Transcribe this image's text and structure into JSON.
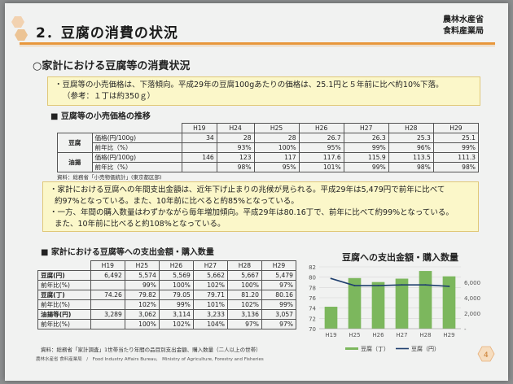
{
  "header": {
    "title": "2．豆腐の消費の状況",
    "ministry_line1": "農林水産省",
    "ministry_line2": "食料産業局"
  },
  "subtitle": "○家計における豆腐等の消費状況",
  "box1": {
    "line1": "・豆腐等の小売価格は、下落傾向。平成29年の豆腐100gあたりの価格は、25.1円と５年前に比べ約10%下落。",
    "line2": "（参考：１丁は約350ｇ）"
  },
  "section1_title": "■ 豆腐等の小売価格の推移",
  "price_table": {
    "years": [
      "H19",
      "H24",
      "H25",
      "H26",
      "H27",
      "H28",
      "H29"
    ],
    "rows": [
      {
        "group": "豆腐",
        "label": "価格(円/100g)",
        "values": [
          "34",
          "28",
          "28",
          "26.7",
          "26.3",
          "25.3",
          "25.1"
        ]
      },
      {
        "group": "",
        "label": "前年比（%）",
        "values": [
          "",
          "93%",
          "100%",
          "95%",
          "99%",
          "96%",
          "99%"
        ]
      },
      {
        "group": "油揚",
        "label": "価格(円/100g)",
        "values": [
          "146",
          "123",
          "117",
          "117.6",
          "115.9",
          "113.5",
          "111.3"
        ]
      },
      {
        "group": "",
        "label": "前年比（%）",
        "values": [
          "",
          "98%",
          "95%",
          "101%",
          "99%",
          "98%",
          "98%"
        ]
      }
    ]
  },
  "source1": "資料：総務省「小売物価統計」(東京都区部)",
  "box2": {
    "line1": "・家計における豆腐への年間支出金額は、近年下げ止まりの兆候が見られる。平成29年は5,479円で前年に比べて",
    "line2": "約97%となっている。また、10年前に比べると約85%となっている。",
    "line3": "・一方、年間の購入数量はわずかながら毎年増加傾向。平成29年は80.16丁で、前年に比べて約99%となっている。",
    "line4": "また、10年前に比べると約108%となっている。"
  },
  "section2_title": "■ 家計における豆腐等への支出金額・購入数量",
  "spend_table": {
    "years": [
      "H19",
      "H25",
      "H26",
      "H27",
      "H28",
      "H29"
    ],
    "rows": [
      {
        "label": "豆腐(円)",
        "values": [
          "6,492",
          "5,574",
          "5,569",
          "5,662",
          "5,667",
          "5,479"
        ]
      },
      {
        "label": "前年比(%)",
        "values": [
          "",
          "99%",
          "100%",
          "102%",
          "100%",
          "97%"
        ]
      },
      {
        "label": "豆腐(丁)",
        "values": [
          "74.26",
          "79.82",
          "79.05",
          "79.71",
          "81.20",
          "80.16"
        ]
      },
      {
        "label": "前年比(%)",
        "values": [
          "",
          "102%",
          "99%",
          "101%",
          "102%",
          "99%"
        ]
      },
      {
        "label": "油揚等(円)",
        "values": [
          "3,289",
          "3,062",
          "3,114",
          "3,233",
          "3,136",
          "3,057"
        ]
      },
      {
        "label": "前年比(%)",
        "values": [
          "",
          "100%",
          "102%",
          "104%",
          "97%",
          "97%"
        ]
      }
    ]
  },
  "source2": "資料：総務省「家計調査」1世帯当たり年間の品目別支出金額、購入数量（二人以上の世帯）",
  "footer": "農林水産省 食料産業局　/　Food Industry Affairs Bureau,　Ministry of Agriculture, Forestry and Fisheries",
  "page_number": "4",
  "chart_data": {
    "type": "bar",
    "title": "豆腐への支出金額・購入数量",
    "categories": [
      "H19",
      "H25",
      "H26",
      "H27",
      "H28",
      "H29"
    ],
    "series": [
      {
        "name": "豆腐（丁）",
        "type": "bar",
        "axis": "left",
        "values": [
          74.26,
          79.82,
          79.05,
          79.71,
          81.2,
          80.16
        ],
        "color": "#7cb75d"
      },
      {
        "name": "豆腐（円）",
        "type": "line",
        "axis": "right",
        "values": [
          6492,
          5574,
          5569,
          5662,
          5667,
          5479
        ],
        "color": "#1f3f6e"
      }
    ],
    "y_left": {
      "min": 70,
      "max": 82,
      "ticks": [
        70,
        72,
        74,
        76,
        78,
        80,
        82
      ]
    },
    "y_right": {
      "min": 0,
      "max": 8000,
      "ticks": [
        "-",
        "2,000",
        "4,000",
        "6,000"
      ]
    },
    "legend_position": "bottom"
  }
}
